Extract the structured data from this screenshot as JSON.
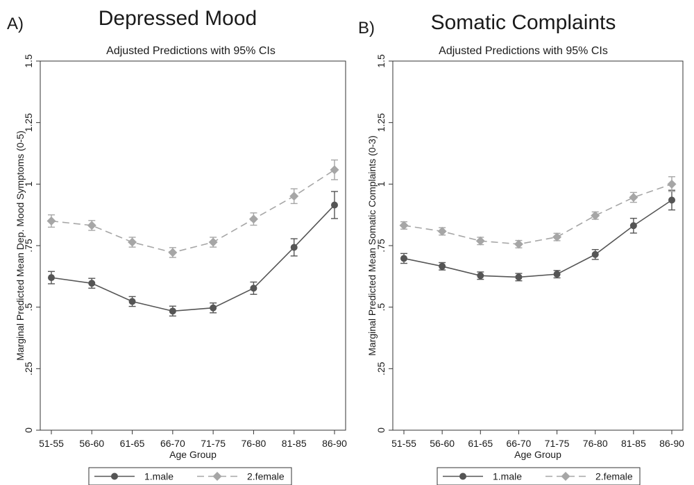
{
  "chart_data": [
    {
      "type": "line",
      "panel_letter": "A)",
      "title": "Depressed Mood",
      "subtitle": "Adjusted Predictions with 95% CIs",
      "xlabel": "Age Group",
      "ylabel": "Marginal Predicted Mean Dep. Mood Symptoms (0-5)",
      "categories": [
        "51-55",
        "56-60",
        "61-65",
        "66-70",
        "71-75",
        "76-80",
        "81-85",
        "86-90"
      ],
      "ylim": [
        0,
        1.5
      ],
      "yticks": [
        {
          "value": 0,
          "label": "0"
        },
        {
          "value": 0.25,
          "label": ".25"
        },
        {
          "value": 0.5,
          "label": ".5"
        },
        {
          "value": 0.75,
          "label": ".75"
        },
        {
          "value": 1,
          "label": "1"
        },
        {
          "value": 1.25,
          "label": "1.25"
        },
        {
          "value": 1.5,
          "label": "1.5"
        }
      ],
      "grid": false,
      "legend_position": "bottom",
      "series": [
        {
          "name": "1.male",
          "marker": "circle",
          "dash": "solid",
          "color": "#555555",
          "values": [
            0.62,
            0.597,
            0.523,
            0.484,
            0.497,
            0.577,
            0.743,
            0.915
          ],
          "ci_low": [
            0.595,
            0.577,
            0.503,
            0.464,
            0.477,
            0.552,
            0.708,
            0.86
          ],
          "ci_high": [
            0.645,
            0.617,
            0.543,
            0.504,
            0.517,
            0.602,
            0.778,
            0.97
          ]
        },
        {
          "name": "2.female",
          "marker": "diamond",
          "dash": "dashed",
          "color": "#a6a6a6",
          "values": [
            0.85,
            0.832,
            0.764,
            0.722,
            0.764,
            0.858,
            0.951,
            1.058
          ],
          "ci_low": [
            0.825,
            0.812,
            0.744,
            0.702,
            0.744,
            0.833,
            0.921,
            1.018
          ],
          "ci_high": [
            0.875,
            0.852,
            0.784,
            0.742,
            0.784,
            0.883,
            0.981,
            1.098
          ]
        }
      ]
    },
    {
      "type": "line",
      "panel_letter": "B)",
      "title": "Somatic Complaints",
      "subtitle": "Adjusted Predictions with 95% CIs",
      "xlabel": "Age Group",
      "ylabel": "Marginal Predicted Mean Somatic Complaints (0-3)",
      "categories": [
        "51-55",
        "56-60",
        "61-65",
        "66-70",
        "71-75",
        "76-80",
        "81-85",
        "86-90"
      ],
      "ylim": [
        0,
        1.5
      ],
      "yticks": [
        {
          "value": 0,
          "label": "0"
        },
        {
          "value": 0.25,
          "label": ".25"
        },
        {
          "value": 0.5,
          "label": ".5"
        },
        {
          "value": 0.75,
          "label": ".75"
        },
        {
          "value": 1,
          "label": "1"
        },
        {
          "value": 1.25,
          "label": "1.25"
        },
        {
          "value": 1.5,
          "label": "1.5"
        }
      ],
      "grid": false,
      "legend_position": "bottom",
      "series": [
        {
          "name": "1.male",
          "marker": "circle",
          "dash": "solid",
          "color": "#555555",
          "values": [
            0.698,
            0.666,
            0.628,
            0.622,
            0.634,
            0.714,
            0.831,
            0.935
          ],
          "ci_low": [
            0.678,
            0.651,
            0.613,
            0.607,
            0.619,
            0.694,
            0.801,
            0.895
          ],
          "ci_high": [
            0.718,
            0.681,
            0.643,
            0.637,
            0.649,
            0.734,
            0.861,
            0.975
          ]
        },
        {
          "name": "2.female",
          "marker": "diamond",
          "dash": "dashed",
          "color": "#a6a6a6",
          "values": [
            0.832,
            0.808,
            0.769,
            0.756,
            0.785,
            0.872,
            0.946,
            1.0
          ],
          "ci_low": [
            0.817,
            0.793,
            0.754,
            0.741,
            0.77,
            0.857,
            0.926,
            0.97
          ],
          "ci_high": [
            0.847,
            0.823,
            0.784,
            0.771,
            0.8,
            0.887,
            0.966,
            1.03
          ]
        }
      ]
    }
  ]
}
